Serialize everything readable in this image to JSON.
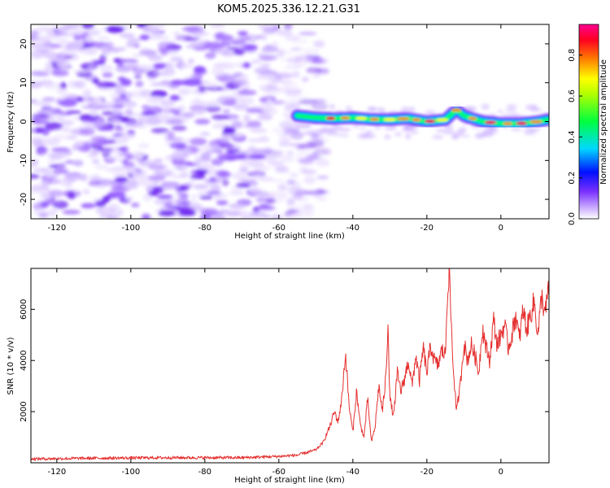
{
  "title": "KOM5.2025.336.12.21.G31",
  "colors": {
    "snr_line": "#e53030",
    "axis": "#000000",
    "background": "#ffffff"
  },
  "chart_data": [
    {
      "type": "heatmap",
      "name": "spectrogram",
      "xlabel": "Height of straight line (km)",
      "ylabel": "Frequency (Hz)",
      "xlim": [
        -127,
        13
      ],
      "ylim": [
        -25,
        25
      ],
      "xticks": [
        -120,
        -100,
        -80,
        -60,
        -40,
        -20,
        0
      ],
      "yticks": [
        -20,
        -10,
        0,
        10,
        20
      ],
      "noise_region_x": [
        -127,
        -48
      ],
      "signal_region_x": [
        -55,
        13
      ],
      "signal_track": {
        "x": [
          -55,
          -50,
          -45,
          -40,
          -35,
          -30,
          -25,
          -20,
          -15,
          -12,
          -10,
          -5,
          0,
          5,
          10,
          13
        ],
        "freq": [
          1.5,
          1.0,
          0.8,
          1.0,
          0.6,
          0.5,
          0.8,
          0.0,
          0.5,
          3.0,
          1.5,
          0.0,
          -0.5,
          -0.5,
          0.0,
          0.5
        ]
      },
      "colorbar": {
        "label": "Normalized spectral amplitude",
        "range": [
          0,
          0.95
        ],
        "ticks": [
          "0.0",
          "0.2",
          "0.4",
          "0.6",
          "0.8"
        ],
        "gradient_stops": [
          "#ffffff",
          "#b585ff",
          "#6020ff",
          "#0000ff",
          "#00e0ff",
          "#00ff40",
          "#ffff00",
          "#ff8000",
          "#ff0000",
          "#ff00a0"
        ]
      }
    },
    {
      "type": "line",
      "name": "snr",
      "xlabel": "Height of straight line (km)",
      "ylabel": "SNR (10 * v/v)",
      "xlim": [
        -127,
        13
      ],
      "ylim": [
        0,
        7600
      ],
      "xticks": [
        -120,
        -100,
        -80,
        -60,
        -40,
        -20,
        0
      ],
      "yticks": [
        2000,
        4000,
        6000
      ],
      "series": [
        {
          "x": [
            -127,
            -110,
            -90,
            -70,
            -60,
            -55,
            -50,
            -48,
            -46,
            -45,
            -44,
            -43,
            -42,
            -41,
            -40,
            -39,
            -38,
            -37,
            -36,
            -35,
            -34,
            -33,
            -32,
            -31,
            -30.5,
            -30,
            -29,
            -28,
            -27,
            -26,
            -25,
            -24,
            -23,
            -22,
            -21,
            -20,
            -19,
            -18,
            -17,
            -16,
            -15,
            -14.5,
            -14,
            -13,
            -12,
            -11,
            -10,
            -9,
            -8,
            -7,
            -6,
            -5,
            -4,
            -3,
            -2,
            -1,
            0,
            1,
            2,
            3,
            4,
            5,
            6,
            7,
            8,
            9,
            10,
            11,
            12,
            13
          ],
          "values": [
            150,
            180,
            200,
            200,
            250,
            300,
            500,
            800,
            1500,
            2000,
            1600,
            2500,
            4300,
            2200,
            1200,
            2800,
            1500,
            1000,
            2500,
            800,
            1400,
            3000,
            2000,
            3500,
            5600,
            2500,
            1800,
            3500,
            2800,
            3300,
            4000,
            3000,
            4200,
            3200,
            4500,
            3500,
            4600,
            4000,
            3800,
            4400,
            4200,
            6500,
            7600,
            4000,
            2000,
            3000,
            4700,
            4000,
            4600,
            4200,
            3500,
            5300,
            4500,
            4000,
            5600,
            4600,
            5000,
            5400,
            4500,
            5000,
            5800,
            4800,
            6000,
            5200,
            5800,
            6300,
            5000,
            6500,
            5800,
            7000
          ]
        }
      ]
    }
  ]
}
